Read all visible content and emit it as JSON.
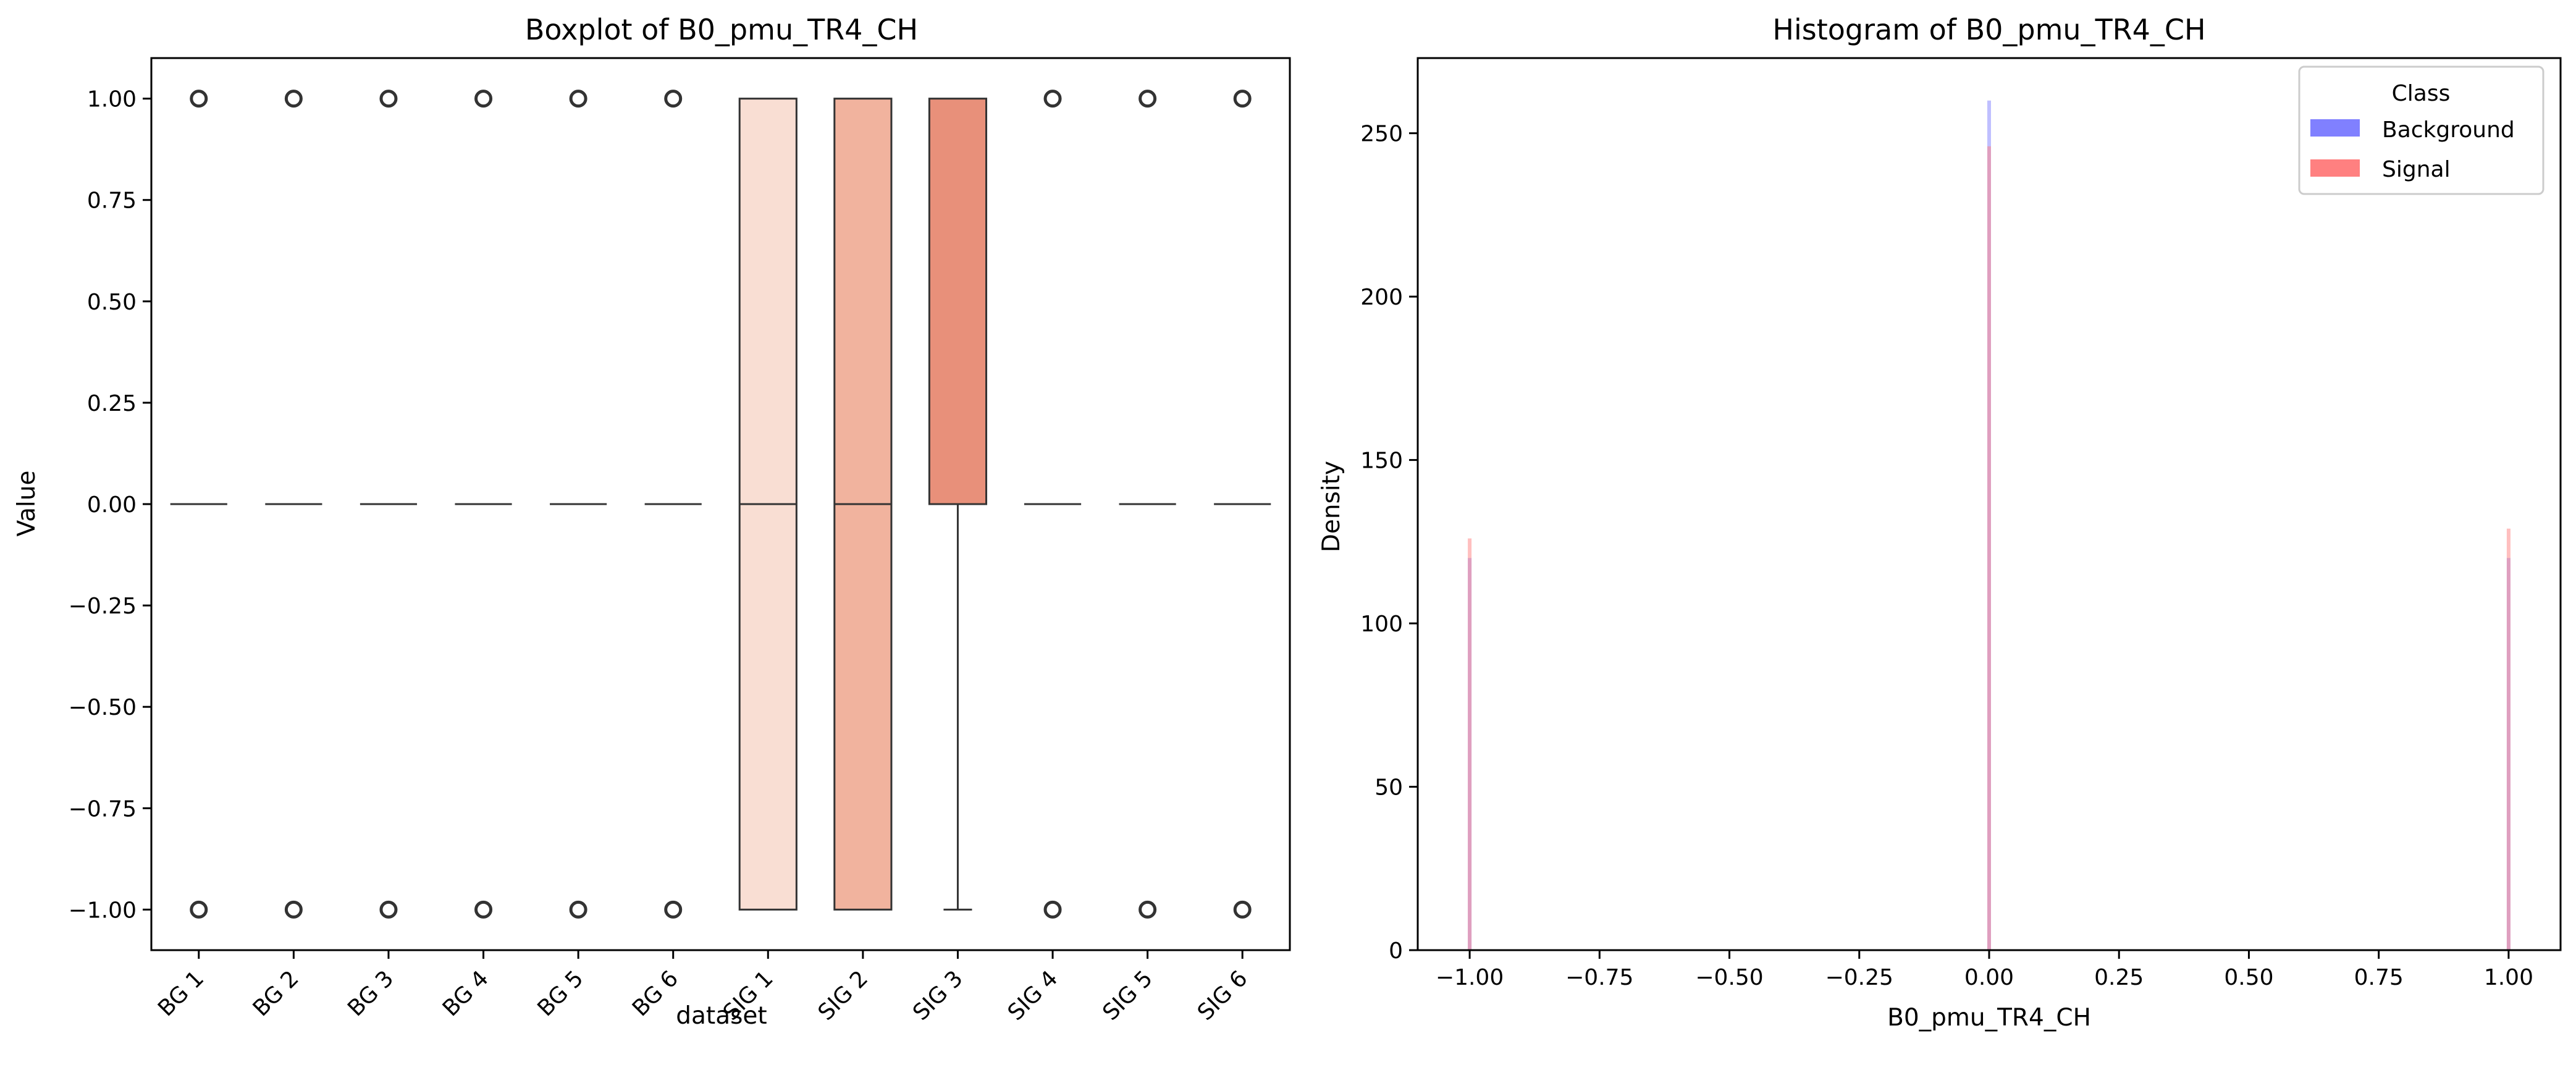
{
  "chart_data": [
    {
      "type": "box",
      "title": "Boxplot of B0_pmu_TR4_CH",
      "xlabel": "dataset",
      "ylabel": "Value",
      "ylim": [
        -1.1,
        1.1
      ],
      "yticks": [
        1.0,
        0.75,
        0.5,
        0.25,
        0.0,
        -0.25,
        -0.5,
        -0.75,
        -1.0
      ],
      "ytick_labels": [
        "1.00",
        "0.75",
        "0.50",
        "0.25",
        "0.00",
        "−0.25",
        "−0.50",
        "−0.75",
        "−1.00"
      ],
      "categories": [
        "BG 1",
        "BG 2",
        "BG 3",
        "BG 4",
        "BG 5",
        "BG 6",
        "SIG 1",
        "SIG 2",
        "SIG 3",
        "SIG 4",
        "SIG 5",
        "SIG 6"
      ],
      "boxes": [
        {
          "q1": 0,
          "median": 0,
          "q3": 0,
          "whisker_low": 0,
          "whisker_high": 0,
          "outliers": [
            1,
            -1
          ],
          "color": "#ffffff"
        },
        {
          "q1": 0,
          "median": 0,
          "q3": 0,
          "whisker_low": 0,
          "whisker_high": 0,
          "outliers": [
            1,
            -1
          ],
          "color": "#ffffff"
        },
        {
          "q1": 0,
          "median": 0,
          "q3": 0,
          "whisker_low": 0,
          "whisker_high": 0,
          "outliers": [
            1,
            -1
          ],
          "color": "#ffffff"
        },
        {
          "q1": 0,
          "median": 0,
          "q3": 0,
          "whisker_low": 0,
          "whisker_high": 0,
          "outliers": [
            1,
            -1
          ],
          "color": "#ffffff"
        },
        {
          "q1": 0,
          "median": 0,
          "q3": 0,
          "whisker_low": 0,
          "whisker_high": 0,
          "outliers": [
            1,
            -1
          ],
          "color": "#ffffff"
        },
        {
          "q1": 0,
          "median": 0,
          "q3": 0,
          "whisker_low": 0,
          "whisker_high": 0,
          "outliers": [
            1,
            -1
          ],
          "color": "#ffffff"
        },
        {
          "q1": -1,
          "median": 0,
          "q3": 1,
          "whisker_low": -1,
          "whisker_high": 1,
          "outliers": [],
          "color": "#f9ded3"
        },
        {
          "q1": -1,
          "median": 0,
          "q3": 1,
          "whisker_low": -1,
          "whisker_high": 1,
          "outliers": [],
          "color": "#f1b39e"
        },
        {
          "q1": 0,
          "median": 0,
          "q3": 1,
          "whisker_low": -1,
          "whisker_high": 1,
          "outliers": [],
          "color": "#e8907a"
        },
        {
          "q1": 0,
          "median": 0,
          "q3": 0,
          "whisker_low": 0,
          "whisker_high": 0,
          "outliers": [
            1,
            -1
          ],
          "color": "#ffffff"
        },
        {
          "q1": 0,
          "median": 0,
          "q3": 0,
          "whisker_low": 0,
          "whisker_high": 0,
          "outliers": [
            1,
            -1
          ],
          "color": "#ffffff"
        },
        {
          "q1": 0,
          "median": 0,
          "q3": 0,
          "whisker_low": 0,
          "whisker_high": 0,
          "outliers": [
            1,
            -1
          ],
          "color": "#ffffff"
        }
      ]
    },
    {
      "type": "histogram",
      "title": "Histogram of B0_pmu_TR4_CH",
      "xlabel": "B0_pmu_TR4_CH",
      "ylabel": "Density",
      "xlim": [
        -1.1,
        1.1
      ],
      "ylim": [
        0,
        273
      ],
      "xticks": [
        -1.0,
        -0.75,
        -0.5,
        -0.25,
        0.0,
        0.25,
        0.5,
        0.75,
        1.0
      ],
      "xtick_labels": [
        "−1.00",
        "−0.75",
        "−0.50",
        "−0.25",
        "0.00",
        "0.25",
        "0.50",
        "0.75",
        "1.00"
      ],
      "yticks": [
        0,
        50,
        100,
        150,
        200,
        250
      ],
      "ytick_labels": [
        "0",
        "50",
        "100",
        "150",
        "200",
        "250"
      ],
      "series": [
        {
          "name": "Background",
          "color": "#8080ff",
          "x": [
            -1.0,
            0.0,
            1.0
          ],
          "y": [
            120,
            260,
            120
          ]
        },
        {
          "name": "Signal",
          "color": "#ff8080",
          "x": [
            -1.0,
            0.0,
            1.0
          ],
          "y": [
            126,
            246,
            129
          ]
        }
      ],
      "legend": {
        "title": "Class",
        "placement": "upper-right"
      }
    }
  ]
}
